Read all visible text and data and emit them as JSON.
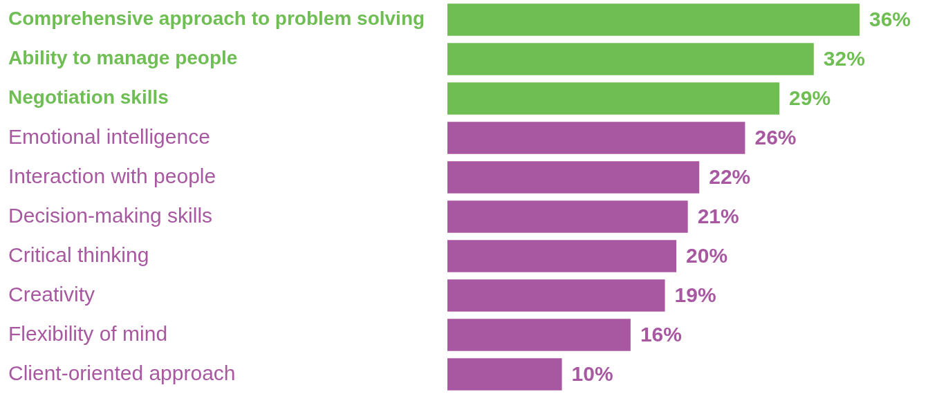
{
  "chart_data": {
    "type": "bar",
    "orientation": "horizontal",
    "categories": [
      "Comprehensive approach to problem solving",
      "Ability to manage people",
      "Negotiation skills",
      "Emotional intelligence",
      "Interaction with people",
      "Decision-making skills",
      "Critical thinking",
      "Creativity",
      "Flexibility of mind",
      "Client-oriented approach"
    ],
    "values": [
      36,
      32,
      29,
      26,
      22,
      21,
      20,
      19,
      16,
      10
    ],
    "colors": [
      "#6fbe54",
      "#6fbe54",
      "#6fbe54",
      "#a858a0",
      "#a858a0",
      "#a858a0",
      "#a858a0",
      "#a858a0",
      "#a858a0",
      "#a858a0"
    ],
    "value_labels": [
      "36%",
      "32%",
      "29%",
      "26%",
      "22%",
      "21%",
      "20%",
      "19%",
      "16%",
      "10%"
    ],
    "tick_labels": "y",
    "grid": false,
    "legend": false
  }
}
